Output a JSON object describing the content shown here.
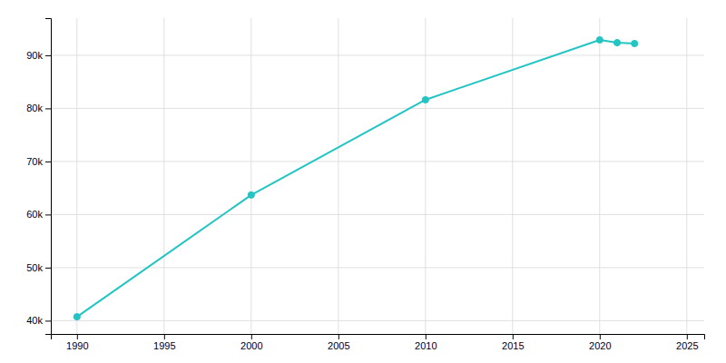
{
  "chart_data": {
    "type": "line",
    "x": [
      1990,
      2000,
      2010,
      2020,
      2021,
      2022
    ],
    "values": [
      40735,
      63685,
      81619,
      92906,
      92376,
      92220
    ],
    "color": "#22C4C4",
    "marker": "circle",
    "xlim": [
      1988.5,
      2026
    ],
    "ylim": [
      37500,
      97000
    ],
    "xticks": [
      1990,
      1995,
      2000,
      2005,
      2010,
      2015,
      2020,
      2025
    ],
    "yticks": [
      {
        "value": 40000,
        "label": "40k"
      },
      {
        "value": 50000,
        "label": "50k"
      },
      {
        "value": 60000,
        "label": "60k"
      },
      {
        "value": 70000,
        "label": "70k"
      },
      {
        "value": 80000,
        "label": "80k"
      },
      {
        "value": 90000,
        "label": "90k"
      }
    ],
    "grid": true
  }
}
